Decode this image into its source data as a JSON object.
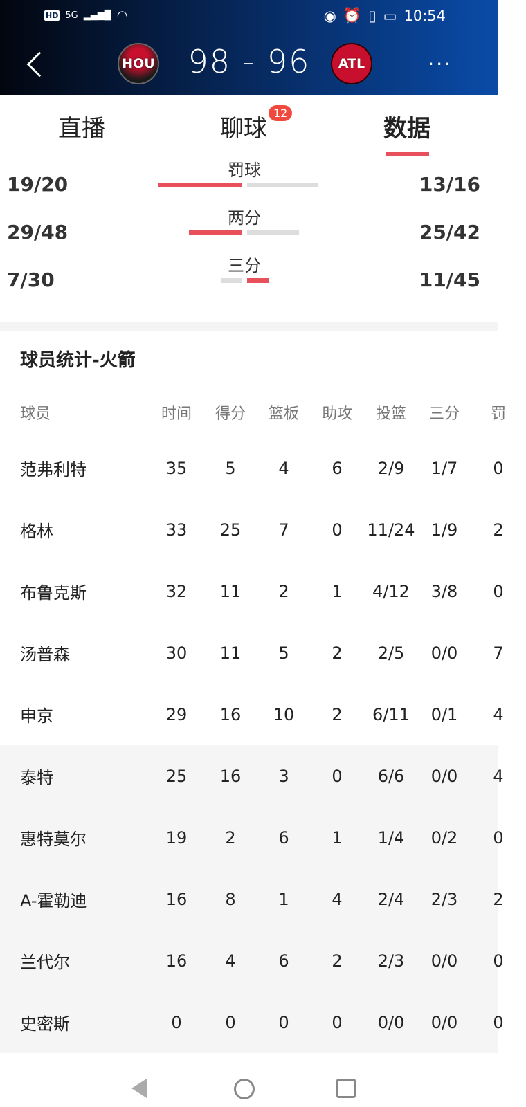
{
  "status_bar": {
    "left": [
      "HD",
      "5G"
    ],
    "time": "10:54"
  },
  "header": {
    "home_team": "HOU",
    "away_team": "ATL",
    "score": "98 - 96",
    "more": "···"
  },
  "tabs": [
    {
      "label": "直播"
    },
    {
      "label": "聊球",
      "badge": "12"
    },
    {
      "label": "数据",
      "active": true
    }
  ],
  "shooting": [
    {
      "name": "罚球",
      "home": "19/20",
      "away": "13/16",
      "home_pct": 0.95,
      "away_pct": 0.8125
    },
    {
      "name": "两分",
      "home": "29/48",
      "away": "25/42",
      "home_pct": 0.604,
      "away_pct": 0.595
    },
    {
      "name": "三分",
      "home": "7/30",
      "away": "11/45",
      "home_pct": 0.233,
      "away_pct": 0.244
    }
  ],
  "colors": {
    "accent": "#e8505b",
    "bar_bg": "#dddddd"
  },
  "player_stats": {
    "title": "球员统计-火箭",
    "columns": [
      "球员",
      "时间",
      "得分",
      "篮板",
      "助攻",
      "投篮",
      "三分",
      "罚"
    ],
    "rows": [
      [
        "范弗利特",
        "35",
        "5",
        "4",
        "6",
        "2/9",
        "1/7",
        "0"
      ],
      [
        "格林",
        "33",
        "25",
        "7",
        "0",
        "11/24",
        "1/9",
        "2"
      ],
      [
        "布鲁克斯",
        "32",
        "11",
        "2",
        "1",
        "4/12",
        "3/8",
        "0"
      ],
      [
        "汤普森",
        "30",
        "11",
        "5",
        "2",
        "2/5",
        "0/0",
        "7"
      ],
      [
        "申京",
        "29",
        "16",
        "10",
        "2",
        "6/11",
        "0/1",
        "4"
      ],
      [
        "泰特",
        "25",
        "16",
        "3",
        "0",
        "6/6",
        "0/0",
        "4"
      ],
      [
        "惠特莫尔",
        "19",
        "2",
        "6",
        "1",
        "1/4",
        "0/2",
        "0"
      ],
      [
        "A-霍勒迪",
        "16",
        "8",
        "1",
        "4",
        "2/4",
        "2/3",
        "2"
      ],
      [
        "兰代尔",
        "16",
        "4",
        "6",
        "2",
        "2/3",
        "0/0",
        "0"
      ],
      [
        "史密斯",
        "0",
        "0",
        "0",
        "0",
        "0/0",
        "0/0",
        "0"
      ]
    ],
    "starters": 5
  }
}
